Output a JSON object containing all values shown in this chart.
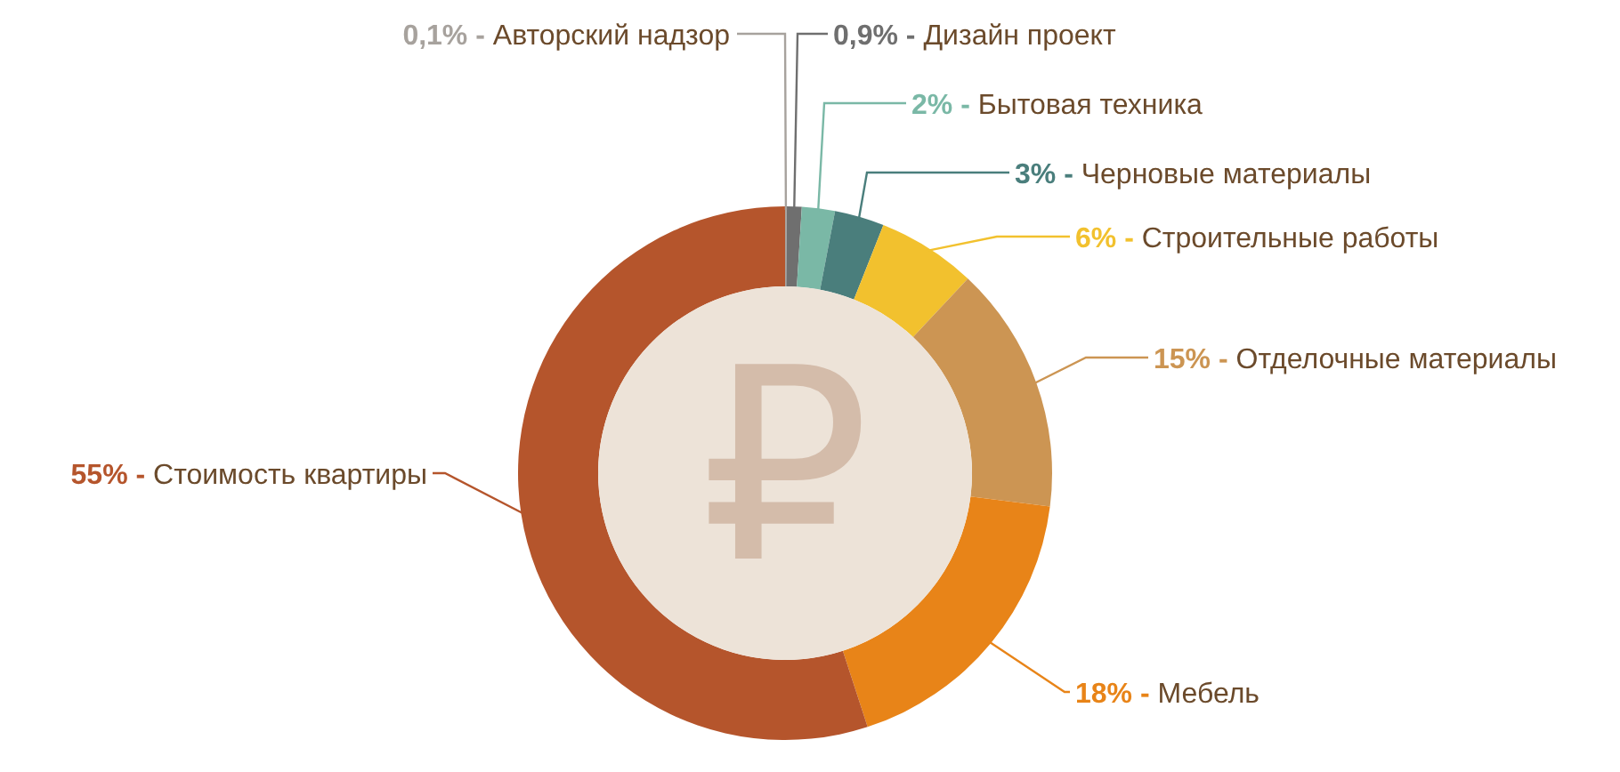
{
  "chart_data": {
    "type": "donut",
    "categories": [
      "Авторский надзор",
      "Дизайн проект",
      "Бытовая техника",
      "Черновые материалы",
      "Строительные работы",
      "Отделочные материалы",
      "Мебель",
      "Стоимость квартиры"
    ],
    "values": [
      0.1,
      0.9,
      2,
      3,
      6,
      15,
      18,
      55
    ],
    "colors": [
      "#a7a29d",
      "#6f6f6f",
      "#7ab8a6",
      "#4a7e7c",
      "#f2c12e",
      "#cc9553",
      "#e88418",
      "#b5552c"
    ],
    "value_labels": [
      "0,1% -",
      "0,9% -",
      "2% -",
      "3% -",
      "6% -",
      "15% -",
      "18% -",
      "55% -"
    ],
    "annotations": [
      "₽"
    ]
  }
}
